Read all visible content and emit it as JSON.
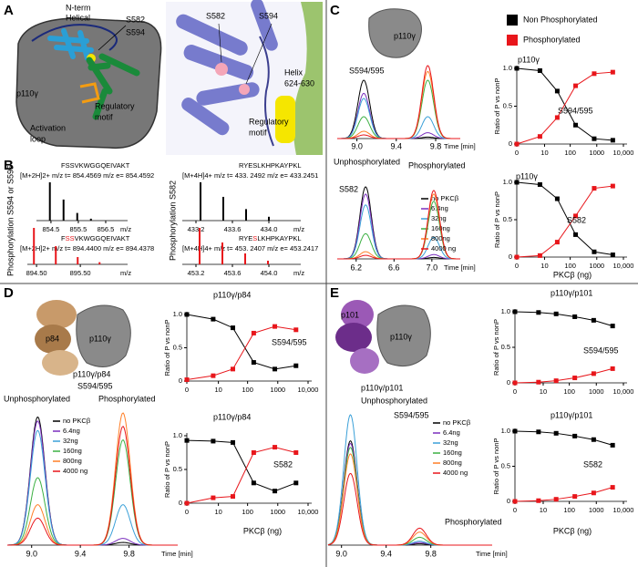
{
  "panel_labels": [
    "A",
    "B",
    "C",
    "D",
    "E"
  ],
  "panel_a": {
    "n_term": [
      "N-term",
      "Helical"
    ],
    "s582": "S582",
    "s594": "S594",
    "p110": "p110γ",
    "activation_loop": [
      "Activation",
      "loop"
    ],
    "regulatory_motif": [
      "Regulatory",
      "motif"
    ],
    "structure": {
      "s582": "S582",
      "s594": "S594",
      "helix": [
        "Helix",
        "624-630"
      ],
      "regulatory_motif": [
        "Regulatory",
        "motif"
      ]
    }
  },
  "panel_b": {
    "left_label": "Phosphorylation S594 or S595",
    "right_label": "Phosphorylation S582",
    "spectra": [
      {
        "sequence": [
          {
            "text": "FSSVKWGGQEIVAKT",
            "color": "#000000"
          }
        ],
        "header": "[M+2H]2+ m/z t= 854.4569   m/z e= 854.4592",
        "color": "#000000",
        "xlim": [
          853.97,
          857.3
        ],
        "xticks": [
          854.5,
          855.5,
          856.5
        ],
        "x_label": "m/z",
        "peaks": [
          854.46,
          854.96,
          855.46,
          855.96
        ],
        "intensities": [
          1,
          0.55,
          0.2,
          0.05
        ]
      },
      {
        "sequence": [
          {
            "text": "F",
            "color": "#000000"
          },
          {
            "text": "SS",
            "color": "#e8161b"
          },
          {
            "text": "VKWGGQEIVAKT",
            "color": "#000000"
          }
        ],
        "header": "[M+2H]2+ m/z t= 894.4400   m/z e= 894.4378",
        "color": "#e8161b",
        "xlim": [
          894.29,
          896.58
        ],
        "xticks": [
          {
            "value": 894.5,
            "label": "894.50"
          },
          {
            "value": 895.5,
            "label": "895.50"
          }
        ],
        "x_label": "m/z",
        "peaks": [
          894.44,
          894.94,
          895.44,
          895.94
        ],
        "intensities": [
          1,
          0.5,
          0.2,
          0.06
        ]
      },
      {
        "sequence": [
          {
            "text": "RYESLKHPKAYPKL",
            "color": "#000000"
          }
        ],
        "header": "[M+4H]4+ m/z t= 433. 2492   m/z e= 433.2451",
        "color": "#000000",
        "xlim": [
          433.05,
          434.35
        ],
        "xticks": [
          433.2,
          433.6,
          {
            "value": 434,
            "label": "434.0"
          }
        ],
        "x_label": "m/z",
        "peaks": [
          433.25,
          433.5,
          433.75,
          434.0
        ],
        "intensities": [
          1,
          0.62,
          0.3,
          0.1
        ]
      },
      {
        "sequence": [
          {
            "text": "RYE",
            "color": "#000000"
          },
          {
            "text": "S",
            "color": "#e8161b"
          },
          {
            "text": "LKHPKAYPKL",
            "color": "#000000"
          }
        ],
        "header": "[M+4H]4+ m/z t= 453. 2407   m/z e= 453.2417",
        "color": "#e8161b",
        "xlim": [
          453.05,
          454.35
        ],
        "xticks": [
          453.2,
          453.6,
          {
            "value": 454,
            "label": "454.0"
          }
        ],
        "x_label": "m/z",
        "peaks": [
          453.24,
          453.49,
          453.74,
          453.99
        ],
        "intensities": [
          1,
          0.6,
          0.3,
          0.1
        ]
      }
    ]
  },
  "panel_c": {
    "cartoon_label": "p110γ",
    "site_top": "S594/595",
    "unphos": "Unphosphorylated",
    "phos": "Phosphorylated",
    "site_bottom": "S582"
  },
  "panel_d": {
    "cartoon_labels": [
      "p84",
      "p110γ"
    ],
    "complex": "p110γ/p84",
    "site": "S594/595",
    "unphos": "Unphosphorylated",
    "phos": "Phosphorylated"
  },
  "panel_e": {
    "cartoon_labels": [
      "p101",
      "p110γ"
    ],
    "complex": "p110γ/p101",
    "unphos": "Unphosphorylated",
    "site": "S594/595",
    "phos": "Phosphorylated"
  },
  "chromatograms": [
    {
      "xlim": [
        8.8,
        10.05
      ],
      "xticks": [
        {
          "value": 9,
          "label": "9.0"
        },
        9.4,
        9.8
      ],
      "x_label": "Time [min]",
      "peak_times": [
        9.07,
        9.72
      ],
      "traces": [
        {
          "color": "#000000",
          "unphos": 0.8,
          "phos": 0.02
        },
        {
          "color": "#7b2fbe",
          "unphos": 0.62,
          "phos": 0.08
        },
        {
          "color": "#3aa0d8",
          "unphos": 0.55,
          "phos": 0.3
        },
        {
          "color": "#3cb043",
          "unphos": 0.3,
          "phos": 0.8
        },
        {
          "color": "#ff7f27",
          "unphos": 0.1,
          "phos": 0.92
        },
        {
          "color": "#e8161b",
          "unphos": 0.05,
          "phos": 1
        }
      ]
    },
    {
      "xlim": [
        6.0,
        7.3
      ],
      "xticks": [
        6.2,
        6.6,
        {
          "value": 7,
          "label": "7.0"
        }
      ],
      "x_label": "Time [min]",
      "peak_times": [
        6.3,
        7.02
      ],
      "traces": [
        {
          "label": "no PKCβ",
          "color": "#000000",
          "unphos": 1,
          "phos": 0.02
        },
        {
          "label": "6.4ng",
          "color": "#7b2fbe",
          "unphos": 0.9,
          "phos": 0.06
        },
        {
          "label": "32ng",
          "color": "#3aa0d8",
          "unphos": 0.75,
          "phos": 0.3
        },
        {
          "label": "160ng",
          "color": "#3cb043",
          "unphos": 0.35,
          "phos": 0.8
        },
        {
          "label": "800ng",
          "color": "#ff7f27",
          "unphos": 0.1,
          "phos": 0.9
        },
        {
          "label": "4000 ng",
          "color": "#e8161b",
          "unphos": 0.05,
          "phos": 0.95
        }
      ]
    },
    {
      "xlim": [
        8.8,
        10.2
      ],
      "xticks": [
        {
          "value": 9,
          "label": "9.0"
        },
        9.4,
        9.8
      ],
      "x_label": "Time [min]",
      "peak_times": [
        9.05,
        9.75
      ],
      "traces": [
        {
          "label": "no PKCβ",
          "color": "#000000",
          "unphos": 0.95,
          "phos": 0.02
        },
        {
          "label": "6.4ng",
          "color": "#7b2fbe",
          "unphos": 0.92,
          "phos": 0.05
        },
        {
          "label": "32ng",
          "color": "#3aa0d8",
          "unphos": 0.85,
          "phos": 0.3
        },
        {
          "label": "160ng",
          "color": "#3cb043",
          "unphos": 0.5,
          "phos": 0.78
        },
        {
          "label": "800ng",
          "color": "#ff7f27",
          "unphos": 0.3,
          "phos": 0.98
        },
        {
          "label": "4000 ng",
          "color": "#e8161b",
          "unphos": 0.2,
          "phos": 0.88
        }
      ]
    },
    {
      "xlim": [
        8.88,
        10.35
      ],
      "xticks": [
        {
          "value": 9,
          "label": "9.0"
        },
        9.4,
        9.8
      ],
      "x_label": "Time [min]",
      "peak_times": [
        9.08,
        9.7
      ],
      "traces": [
        {
          "label": "no PKCβ",
          "color": "#000000",
          "unphos": 0.8,
          "phos": 0.01
        },
        {
          "label": "6.4ng",
          "color": "#7b2fbe",
          "unphos": 0.78,
          "phos": 0.02
        },
        {
          "label": "32ng",
          "color": "#3aa0d8",
          "unphos": 1,
          "phos": 0.03
        },
        {
          "label": "160ng",
          "color": "#3cb043",
          "unphos": 0.75,
          "phos": 0.06
        },
        {
          "label": "800ng",
          "color": "#ff7f27",
          "unphos": 0.7,
          "phos": 0.1
        },
        {
          "label": "4000 ng",
          "color": "#e8161b",
          "unphos": 0.55,
          "phos": 0.13
        }
      ]
    }
  ],
  "chart_data": [
    {
      "type": "line",
      "title": "p110γ",
      "annotation": "S594/595",
      "y_label": "Ratio of P vs nonP",
      "x_scale": "log",
      "x": [
        0,
        6.4,
        32,
        160,
        800,
        4000
      ],
      "xlim": [
        0,
        10000
      ],
      "xticks": [
        0,
        10,
        100,
        1000,
        {
          "value": 10000,
          "label": "10,000"
        }
      ],
      "ylim": [
        0,
        1
      ],
      "yticks": [
        0,
        0.5,
        {
          "value": 1,
          "label": "1.0"
        }
      ],
      "series": [
        {
          "name": "Non Phosphorylated",
          "color": "#000000",
          "values": [
            1,
            0.97,
            0.7,
            0.25,
            0.07,
            0.05
          ]
        },
        {
          "name": "Phosphorylated",
          "color": "#e8161b",
          "values": [
            0,
            0.1,
            0.35,
            0.77,
            0.93,
            0.95
          ]
        }
      ]
    },
    {
      "type": "line",
      "title": "p110γ",
      "annotation": "S582",
      "y_label": "Ratio of P vs nonP",
      "x_label": "PKCβ (ng)",
      "x_scale": "log",
      "x": [
        0,
        6.4,
        32,
        160,
        800,
        4000
      ],
      "xlim": [
        0,
        10000
      ],
      "xticks": [
        0,
        10,
        100,
        1000,
        {
          "value": 10000,
          "label": "10,000"
        }
      ],
      "ylim": [
        0,
        1
      ],
      "yticks": [
        0,
        0.5,
        {
          "value": 1,
          "label": "1.0"
        }
      ],
      "series": [
        {
          "color": "#000000",
          "values": [
            1,
            0.97,
            0.78,
            0.3,
            0.07,
            0.03
          ]
        },
        {
          "color": "#e8161b",
          "values": [
            0,
            0.02,
            0.2,
            0.55,
            0.92,
            0.95
          ]
        }
      ]
    },
    {
      "type": "line",
      "title": "p110γ/p84",
      "annotation": "S594/595",
      "y_label": "Ratio of P vs nonP",
      "x_scale": "log",
      "x": [
        0,
        6.4,
        32,
        160,
        800,
        4000
      ],
      "xlim": [
        0,
        10000
      ],
      "xticks": [
        0,
        10,
        100,
        1000,
        {
          "value": 10000,
          "label": "10,000"
        }
      ],
      "ylim": [
        0,
        1
      ],
      "yticks": [
        0,
        0.5,
        {
          "value": 1,
          "label": "1.0"
        }
      ],
      "series": [
        {
          "color": "#000000",
          "values": [
            1,
            0.93,
            0.8,
            0.28,
            0.18,
            0.23
          ]
        },
        {
          "color": "#e8161b",
          "values": [
            0.02,
            0.08,
            0.18,
            0.72,
            0.82,
            0.77
          ]
        }
      ]
    },
    {
      "type": "line",
      "title": "p110γ/p84",
      "annotation": "S582",
      "y_label": "Ratio of P vs nonP",
      "x_label": "PKCβ (ng)",
      "x_scale": "log",
      "x": [
        0,
        6.4,
        32,
        160,
        800,
        4000
      ],
      "xlim": [
        0,
        10000
      ],
      "xticks": [
        0,
        10,
        100,
        1000,
        {
          "value": 10000,
          "label": "10,000"
        }
      ],
      "ylim": [
        0,
        1
      ],
      "yticks": [
        0,
        0.5,
        {
          "value": 1,
          "label": "1.0"
        }
      ],
      "series": [
        {
          "color": "#000000",
          "values": [
            0.93,
            0.92,
            0.9,
            0.3,
            0.18,
            0.3
          ]
        },
        {
          "color": "#e8161b",
          "values": [
            0,
            0.08,
            0.1,
            0.75,
            0.83,
            0.75
          ]
        }
      ]
    },
    {
      "type": "line",
      "title": "p110γ/p101",
      "annotation": "S594/595",
      "y_label": "Ratio of P vs nonP",
      "x_scale": "log",
      "x": [
        0,
        6.4,
        32,
        160,
        800,
        4000
      ],
      "xlim": [
        0,
        10000
      ],
      "xticks": [
        0,
        10,
        100,
        1000,
        {
          "value": 10000,
          "label": "10,000"
        }
      ],
      "ylim": [
        0,
        1
      ],
      "yticks": [
        0,
        0.5,
        {
          "value": 1,
          "label": "1.0"
        }
      ],
      "series": [
        {
          "color": "#000000",
          "values": [
            1,
            0.99,
            0.97,
            0.93,
            0.88,
            0.8
          ]
        },
        {
          "color": "#e8161b",
          "values": [
            0,
            0.01,
            0.03,
            0.07,
            0.13,
            0.2
          ]
        }
      ]
    },
    {
      "type": "line",
      "title": "p110γ/p101",
      "annotation": "S582",
      "y_label": "Ratio of P vs nonP",
      "x_label": "PKCβ (ng)",
      "x_scale": "log",
      "x": [
        0,
        6.4,
        32,
        160,
        800,
        4000
      ],
      "xlim": [
        0,
        10000
      ],
      "xticks": [
        0,
        10,
        100,
        1000,
        {
          "value": 10000,
          "label": "10,000"
        }
      ],
      "ylim": [
        0,
        1
      ],
      "yticks": [
        0,
        0.5,
        {
          "value": 1,
          "label": "1.0"
        }
      ],
      "series": [
        {
          "color": "#000000",
          "values": [
            1,
            0.99,
            0.97,
            0.93,
            0.88,
            0.8
          ]
        },
        {
          "color": "#e8161b",
          "values": [
            0,
            0.01,
            0.03,
            0.07,
            0.12,
            0.2
          ]
        }
      ]
    }
  ]
}
